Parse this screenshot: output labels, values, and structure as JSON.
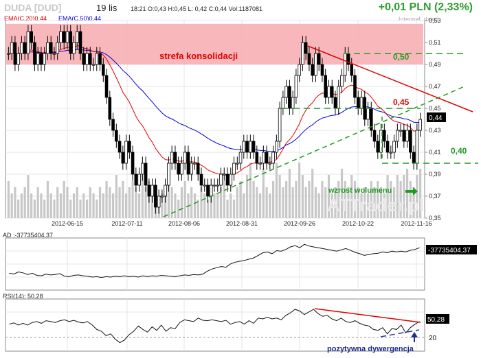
{
  "header": {
    "ticker": "DUDA [DUD]",
    "date": "19 lis",
    "quote": "18:21  O:0,43  H:0,45  L: 0,42  C:0,44  Vol:1187081",
    "change": "+0,01 PLN (2,33%)",
    "interval": "Interwał: dzień"
  },
  "legend": {
    "ema20": "EMA(C,20)0,44",
    "ema50": "EMA(C,50)0,44"
  },
  "colors": {
    "up": "#ffffff",
    "down": "#000000",
    "ema20": "#e00000",
    "ema50": "#0000e0",
    "zone": "#f7b0b4",
    "annotation_red": "#e00000",
    "annotation_green": "#229922",
    "volume": "#c8c8c8"
  },
  "chart_data": [
    {
      "type": "candlestick",
      "title": "DUDA [DUD]",
      "x_ticks": [
        "2012-06-15",
        "2012-07-11",
        "2012-08-06",
        "2012-08-31",
        "2012-09-26",
        "2012-10-22",
        "2012-11-16"
      ],
      "y_ticks": [
        "0,35",
        "0,37",
        "0,39",
        "0,41",
        "0,43",
        "0,45",
        "0,47",
        "0,49",
        "0,51",
        "0,53"
      ],
      "ylim": [
        0.35,
        0.53
      ],
      "last_price_label": "0,44",
      "close": [
        0.5,
        0.51,
        0.49,
        0.5,
        0.51,
        0.5,
        0.52,
        0.51,
        0.49,
        0.5,
        0.49,
        0.5,
        0.51,
        0.5,
        0.5,
        0.51,
        0.52,
        0.51,
        0.52,
        0.5,
        0.51,
        0.52,
        0.5,
        0.49,
        0.5,
        0.49,
        0.49,
        0.5,
        0.49,
        0.48,
        0.46,
        0.44,
        0.43,
        0.42,
        0.41,
        0.4,
        0.42,
        0.41,
        0.39,
        0.38,
        0.39,
        0.4,
        0.38,
        0.37,
        0.38,
        0.36,
        0.37,
        0.37,
        0.38,
        0.4,
        0.41,
        0.4,
        0.39,
        0.4,
        0.41,
        0.39,
        0.4,
        0.4,
        0.39,
        0.38,
        0.38,
        0.37,
        0.38,
        0.38,
        0.38,
        0.39,
        0.39,
        0.38,
        0.39,
        0.4,
        0.4,
        0.41,
        0.42,
        0.41,
        0.42,
        0.41,
        0.4,
        0.4,
        0.41,
        0.4,
        0.4,
        0.41,
        0.42,
        0.45,
        0.46,
        0.47,
        0.45,
        0.46,
        0.48,
        0.49,
        0.51,
        0.5,
        0.49,
        0.48,
        0.5,
        0.49,
        0.48,
        0.46,
        0.47,
        0.46,
        0.45,
        0.47,
        0.48,
        0.5,
        0.49,
        0.48,
        0.46,
        0.45,
        0.46,
        0.44,
        0.45,
        0.43,
        0.42,
        0.41,
        0.43,
        0.42,
        0.41,
        0.41,
        0.42,
        0.43,
        0.43,
        0.42,
        0.43,
        0.41,
        0.4,
        0.43,
        0.44
      ],
      "volume": [
        0.6,
        0.4,
        0.5,
        0.3,
        0.4,
        0.5,
        0.7,
        0.4,
        0.3,
        0.5,
        0.4,
        0.3,
        0.6,
        0.4,
        0.3,
        0.5,
        0.4,
        0.6,
        0.5,
        0.3,
        0.4,
        0.5,
        0.3,
        0.4,
        0.3,
        0.5,
        0.4,
        0.3,
        0.5,
        0.4,
        0.6,
        0.5,
        0.4,
        0.7,
        0.5,
        0.6,
        0.4,
        0.5,
        0.6,
        0.5,
        0.4,
        0.7,
        0.5,
        0.6,
        0.4,
        0.5,
        0.3,
        0.4,
        0.5,
        0.6,
        0.5,
        0.4,
        0.3,
        0.5,
        0.6,
        0.4,
        0.5,
        0.4,
        0.3,
        0.5,
        0.4,
        0.3,
        0.5,
        0.4,
        0.4,
        0.5,
        0.6,
        0.3,
        0.4,
        0.3,
        0.5,
        0.6,
        0.4,
        0.7,
        0.9,
        0.6,
        0.5,
        0.4,
        0.8,
        0.5,
        0.4,
        0.6,
        0.9,
        0.7,
        0.5,
        0.6,
        0.8,
        0.5,
        0.6,
        0.9,
        0.7,
        0.5,
        0.6,
        0.8,
        0.5,
        0.4,
        0.6,
        0.5,
        0.7,
        0.4,
        0.5,
        0.6,
        0.8,
        0.6,
        0.5,
        0.7,
        0.6,
        0.5,
        0.4,
        0.5,
        0.4,
        0.6,
        0.5,
        0.6,
        0.5,
        0.4,
        0.7,
        0.6,
        0.5,
        0.7,
        0.6,
        0.7,
        0.8,
        0.6,
        0.5,
        0.7,
        0.8
      ],
      "annotations": {
        "zone_label": "strefa konsolidacji",
        "zone_range": [
          0.49,
          0.527
        ],
        "level_050": "0,50",
        "level_045": "0,45",
        "level_040": "0,40",
        "volume_note": "wzrost wolumenu"
      }
    },
    {
      "type": "line",
      "title": "AD",
      "label": "AD :-37735404,37",
      "last_value_label": "-37735404,37",
      "values": [
        0.3,
        0.28,
        0.33,
        0.31,
        0.27,
        0.3,
        0.25,
        0.24,
        0.28,
        0.26,
        0.27,
        0.29,
        0.23,
        0.22,
        0.25,
        0.26,
        0.24,
        0.23,
        0.21,
        0.22,
        0.2,
        0.22,
        0.21,
        0.23,
        0.22,
        0.24,
        0.22,
        0.23,
        0.21,
        0.24,
        0.22,
        0.24,
        0.23,
        0.25,
        0.24,
        0.23,
        0.22,
        0.24,
        0.26,
        0.25,
        0.27,
        0.26,
        0.28,
        0.35,
        0.4,
        0.43,
        0.46,
        0.44,
        0.52,
        0.56,
        0.58,
        0.6,
        0.63,
        0.66,
        0.72,
        0.78,
        0.8,
        0.76,
        0.83,
        0.82,
        0.86,
        0.92,
        0.95,
        0.9,
        0.98,
        0.94,
        0.92,
        0.9,
        0.88,
        0.86,
        0.84,
        0.82,
        0.85,
        0.88,
        0.84,
        0.79,
        0.76,
        0.72,
        0.74,
        0.76,
        0.77,
        0.8,
        0.78,
        0.82,
        0.8,
        0.82,
        0.8,
        0.84,
        0.86,
        0.9
      ]
    },
    {
      "type": "line",
      "title": "RSI(14)",
      "label": "RSI(14): 50,28",
      "last_value_label": "50,28",
      "y_ticks": [
        "20"
      ],
      "annotation": "pozytywna dywergencja",
      "values": [
        0.52,
        0.55,
        0.5,
        0.54,
        0.5,
        0.56,
        0.58,
        0.54,
        0.6,
        0.58,
        0.56,
        0.6,
        0.62,
        0.58,
        0.61,
        0.57,
        0.55,
        0.58,
        0.5,
        0.4,
        0.36,
        0.26,
        0.3,
        0.18,
        0.1,
        0.16,
        0.28,
        0.36,
        0.48,
        0.4,
        0.34,
        0.46,
        0.38,
        0.5,
        0.36,
        0.44,
        0.42,
        0.56,
        0.62,
        0.6,
        0.58,
        0.66,
        0.61,
        0.6,
        0.62,
        0.6,
        0.58,
        0.61,
        0.52,
        0.56,
        0.58,
        0.52,
        0.6,
        0.54,
        0.66,
        0.64,
        0.68,
        0.64,
        0.66,
        0.62,
        0.72,
        0.78,
        0.86,
        0.82,
        0.74,
        0.8,
        0.86,
        0.76,
        0.7,
        0.72,
        0.64,
        0.6,
        0.66,
        0.58,
        0.56,
        0.6,
        0.54,
        0.5,
        0.48,
        0.4,
        0.38,
        0.44,
        0.3,
        0.42,
        0.4,
        0.5,
        0.32,
        0.44,
        0.52,
        0.58
      ]
    }
  ]
}
